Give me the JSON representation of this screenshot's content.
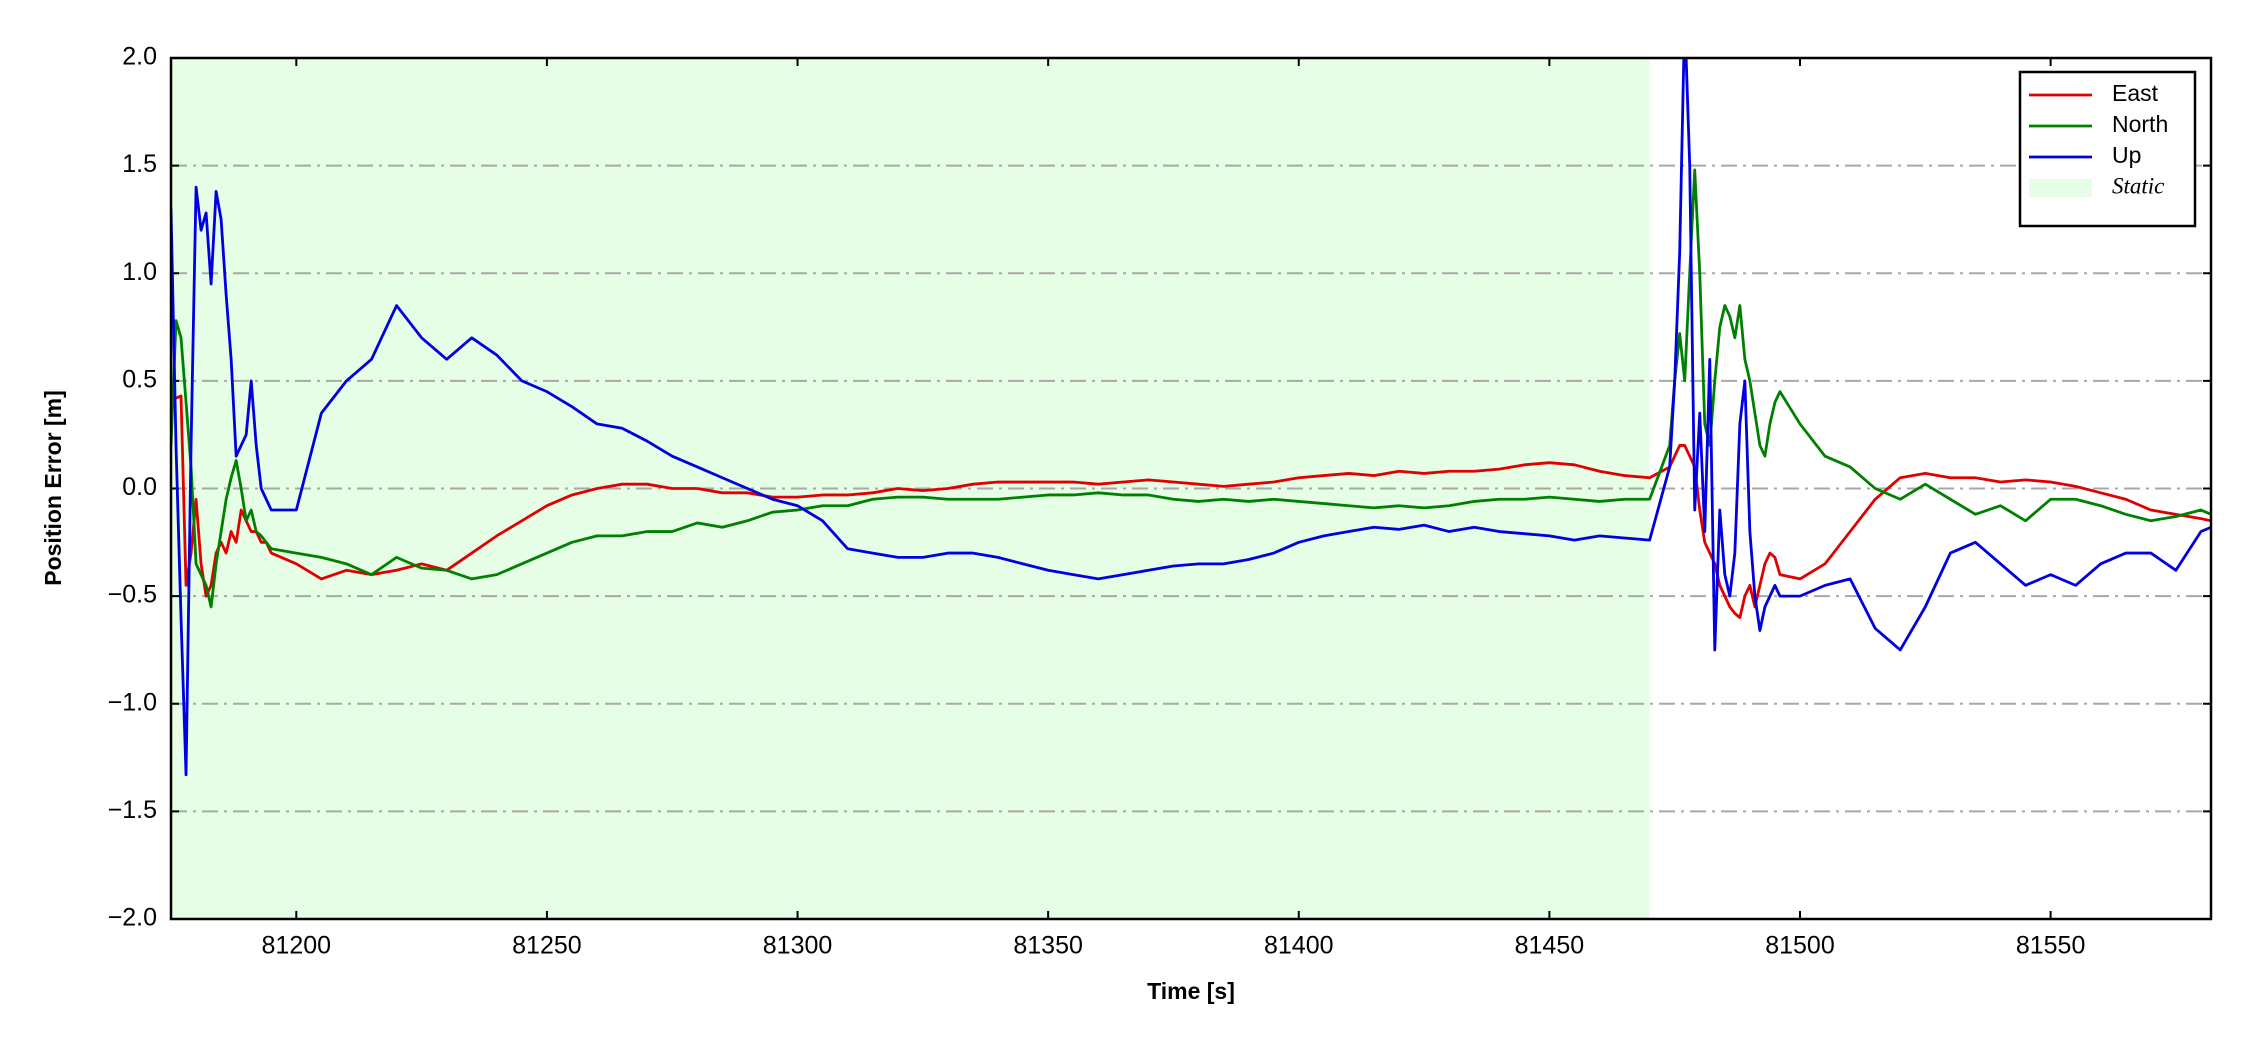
{
  "chart_data": {
    "type": "line",
    "xlabel": "Time [s]",
    "ylabel": "Position Error [m]",
    "xlim": [
      81175,
      81582
    ],
    "ylim": [
      -2.0,
      2.0
    ],
    "xticks": [
      81200,
      81250,
      81300,
      81350,
      81400,
      81450,
      81500,
      81550
    ],
    "yticks": [
      {
        "value": -2.0,
        "label": "−2.0"
      },
      {
        "value": -1.5,
        "label": "−1.5"
      },
      {
        "value": -1.0,
        "label": "−1.0"
      },
      {
        "value": -0.5,
        "label": "−0.5"
      },
      {
        "value": 0.0,
        "label": "0.0"
      },
      0.5,
      {
        "value": 1.0,
        "label": "1.0"
      },
      1.5,
      {
        "value": 2.0,
        "label": "2.0"
      }
    ],
    "grid": true,
    "legend_loc": "upper right",
    "span": {
      "name": "Static",
      "color": "#e6fde6",
      "xlim": [
        81175,
        81470
      ]
    },
    "x": [
      81175,
      81176,
      81177,
      81178,
      81179,
      81180,
      81181,
      81182,
      81183,
      81184,
      81185,
      81186,
      81187,
      81188,
      81189,
      81190,
      81191,
      81192,
      81193,
      81194,
      81195,
      81200,
      81205,
      81210,
      81215,
      81220,
      81225,
      81230,
      81235,
      81240,
      81245,
      81250,
      81255,
      81260,
      81265,
      81270,
      81275,
      81280,
      81285,
      81290,
      81295,
      81300,
      81305,
      81310,
      81315,
      81320,
      81325,
      81330,
      81335,
      81340,
      81345,
      81350,
      81355,
      81360,
      81365,
      81370,
      81375,
      81380,
      81385,
      81390,
      81395,
      81400,
      81405,
      81410,
      81415,
      81420,
      81425,
      81430,
      81435,
      81440,
      81445,
      81450,
      81455,
      81460,
      81465,
      81470,
      81474,
      81475,
      81476,
      81477,
      81478,
      81479,
      81480,
      81481,
      81482,
      81483,
      81484,
      81485,
      81486,
      81487,
      81488,
      81489,
      81490,
      81491,
      81492,
      81493,
      81494,
      81495,
      81496,
      81500,
      81505,
      81510,
      81515,
      81520,
      81525,
      81530,
      81535,
      81540,
      81545,
      81550,
      81555,
      81560,
      81565,
      81570,
      81575,
      81580,
      81582
    ],
    "series": [
      {
        "name": "East",
        "color": "#e00000",
        "values": [
          0.4,
          0.42,
          0.43,
          -0.45,
          -0.3,
          -0.05,
          -0.35,
          -0.5,
          -0.45,
          -0.3,
          -0.25,
          -0.3,
          -0.2,
          -0.25,
          -0.1,
          -0.15,
          -0.2,
          -0.2,
          -0.25,
          -0.25,
          -0.3,
          -0.35,
          -0.42,
          -0.38,
          -0.4,
          -0.38,
          -0.35,
          -0.38,
          -0.3,
          -0.22,
          -0.15,
          -0.08,
          -0.03,
          0.0,
          0.02,
          0.02,
          0.0,
          0.0,
          -0.02,
          -0.02,
          -0.04,
          -0.04,
          -0.03,
          -0.03,
          -0.02,
          0.0,
          -0.01,
          0.0,
          0.02,
          0.03,
          0.03,
          0.03,
          0.03,
          0.02,
          0.03,
          0.04,
          0.03,
          0.02,
          0.01,
          0.02,
          0.03,
          0.05,
          0.06,
          0.07,
          0.06,
          0.08,
          0.07,
          0.08,
          0.08,
          0.09,
          0.11,
          0.12,
          0.11,
          0.08,
          0.06,
          0.05,
          0.1,
          0.15,
          0.2,
          0.2,
          0.15,
          0.1,
          -0.1,
          -0.25,
          -0.3,
          -0.35,
          -0.45,
          -0.5,
          -0.55,
          -0.58,
          -0.6,
          -0.5,
          -0.45,
          -0.55,
          -0.45,
          -0.35,
          -0.3,
          -0.32,
          -0.4,
          -0.42,
          -0.35,
          -0.2,
          -0.05,
          0.05,
          0.07,
          0.05,
          0.05,
          0.03,
          0.04,
          0.03,
          0.01,
          -0.02,
          -0.05,
          -0.1,
          -0.12,
          -0.14,
          -0.15
        ]
      },
      {
        "name": "North",
        "color": "#008000",
        "values": [
          0.2,
          0.78,
          0.7,
          0.4,
          0.1,
          -0.35,
          -0.4,
          -0.45,
          -0.55,
          -0.35,
          -0.2,
          -0.05,
          0.05,
          0.13,
          0.0,
          -0.15,
          -0.1,
          -0.2,
          -0.22,
          -0.25,
          -0.28,
          -0.3,
          -0.32,
          -0.35,
          -0.4,
          -0.32,
          -0.37,
          -0.38,
          -0.42,
          -0.4,
          -0.35,
          -0.3,
          -0.25,
          -0.22,
          -0.22,
          -0.2,
          -0.2,
          -0.16,
          -0.18,
          -0.15,
          -0.11,
          -0.1,
          -0.08,
          -0.08,
          -0.05,
          -0.04,
          -0.04,
          -0.05,
          -0.05,
          -0.05,
          -0.04,
          -0.03,
          -0.03,
          -0.02,
          -0.03,
          -0.03,
          -0.05,
          -0.06,
          -0.05,
          -0.06,
          -0.05,
          -0.06,
          -0.07,
          -0.08,
          -0.09,
          -0.08,
          -0.09,
          -0.08,
          -0.06,
          -0.05,
          -0.05,
          -0.04,
          -0.05,
          -0.06,
          -0.05,
          -0.05,
          0.2,
          0.5,
          0.72,
          0.5,
          1.0,
          1.48,
          1.0,
          0.3,
          0.2,
          0.5,
          0.75,
          0.85,
          0.8,
          0.7,
          0.85,
          0.6,
          0.5,
          0.35,
          0.2,
          0.15,
          0.3,
          0.4,
          0.45,
          0.3,
          0.15,
          0.1,
          0.0,
          -0.05,
          0.02,
          -0.05,
          -0.12,
          -0.08,
          -0.15,
          -0.05,
          -0.05,
          -0.08,
          -0.12,
          -0.15,
          -0.13,
          -0.1,
          -0.12
        ]
      },
      {
        "name": "Up",
        "color": "#0000e0",
        "values": [
          1.3,
          0.2,
          -0.6,
          -1.33,
          0.2,
          1.4,
          1.2,
          1.28,
          0.95,
          1.38,
          1.25,
          0.9,
          0.6,
          0.15,
          0.2,
          0.25,
          0.5,
          0.2,
          0.0,
          -0.05,
          -0.1,
          -0.1,
          0.35,
          0.5,
          0.6,
          0.85,
          0.7,
          0.6,
          0.7,
          0.62,
          0.5,
          0.45,
          0.38,
          0.3,
          0.28,
          0.22,
          0.15,
          0.1,
          0.05,
          0.0,
          -0.05,
          -0.08,
          -0.15,
          -0.28,
          -0.3,
          -0.32,
          -0.32,
          -0.3,
          -0.3,
          -0.32,
          -0.35,
          -0.38,
          -0.4,
          -0.42,
          -0.4,
          -0.38,
          -0.36,
          -0.35,
          -0.35,
          -0.33,
          -0.3,
          -0.25,
          -0.22,
          -0.2,
          -0.18,
          -0.19,
          -0.17,
          -0.2,
          -0.18,
          -0.2,
          -0.21,
          -0.22,
          -0.24,
          -0.22,
          -0.23,
          -0.24,
          0.1,
          0.5,
          1.1,
          2.2,
          1.5,
          -0.1,
          0.35,
          -0.2,
          0.6,
          -0.75,
          -0.1,
          -0.4,
          -0.5,
          -0.3,
          0.3,
          0.5,
          -0.2,
          -0.5,
          -0.66,
          -0.55,
          -0.5,
          -0.45,
          -0.5,
          -0.5,
          -0.45,
          -0.42,
          -0.65,
          -0.75,
          -0.55,
          -0.3,
          -0.25,
          -0.35,
          -0.45,
          -0.4,
          -0.45,
          -0.35,
          -0.3,
          -0.3,
          -0.38,
          -0.2,
          -0.18
        ]
      }
    ]
  }
}
